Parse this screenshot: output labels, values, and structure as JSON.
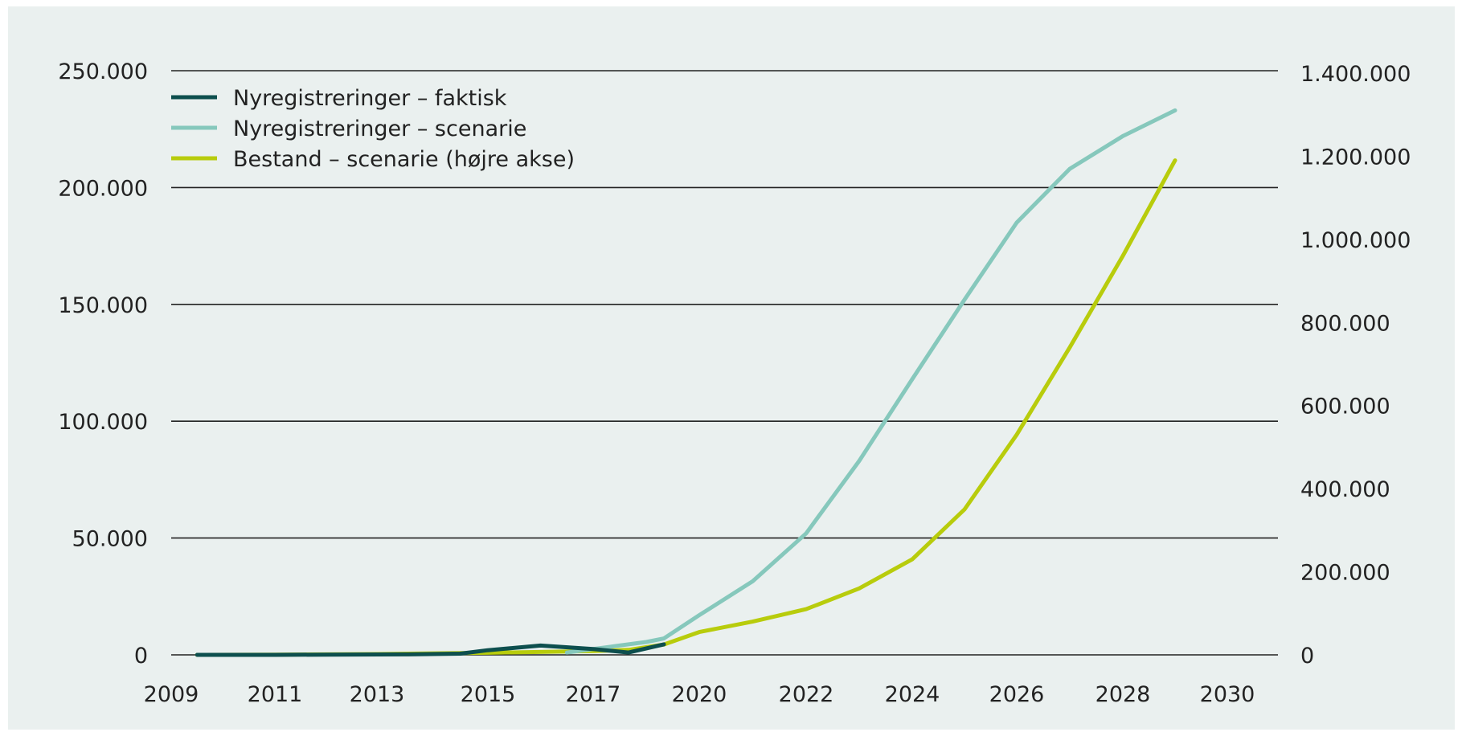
{
  "chart_data": {
    "type": "line",
    "x_ticks": [
      "2009",
      "2011",
      "2013",
      "2015",
      "2017",
      "2020",
      "2022",
      "2024",
      "2026",
      "2028",
      "2030"
    ],
    "y_left": {
      "min": 0,
      "max": 250000,
      "ticks": [
        {
          "value": 0,
          "label": "0"
        },
        {
          "value": 50000,
          "label": "50.000"
        },
        {
          "value": 100000,
          "label": "100.000"
        },
        {
          "value": 150000,
          "label": "150.000"
        },
        {
          "value": 200000,
          "label": "200.000"
        },
        {
          "value": 250000,
          "label": "250.000"
        }
      ]
    },
    "y_right": {
      "min": 0,
      "max": 1400000,
      "ticks": [
        {
          "value": 0,
          "label": "0"
        },
        {
          "value": 200000,
          "label": "200.000"
        },
        {
          "value": 400000,
          "label": "400.000"
        },
        {
          "value": 600000,
          "label": "600.000"
        },
        {
          "value": 800000,
          "label": "800.000"
        },
        {
          "value": 1000000,
          "label": "1.000.000"
        },
        {
          "value": 1200000,
          "label": "1.200.000"
        },
        {
          "value": 1400000,
          "label": "1.400.000"
        }
      ]
    },
    "grid": true,
    "legend_position": "top-left",
    "series": [
      {
        "name": "Nyregistreringer – faktisk",
        "axis": "left",
        "color": "#0d4f4e",
        "points": [
          {
            "x": 2009.5,
            "y": 0
          },
          {
            "x": 2011,
            "y": 0
          },
          {
            "x": 2012,
            "y": 100
          },
          {
            "x": 2013.5,
            "y": 200
          },
          {
            "x": 2014.5,
            "y": 500
          },
          {
            "x": 2015,
            "y": 2000
          },
          {
            "x": 2016,
            "y": 4000
          },
          {
            "x": 2017,
            "y": 2500
          },
          {
            "x": 2018,
            "y": 1000
          },
          {
            "x": 2019,
            "y": 4500
          }
        ]
      },
      {
        "name": "Nyregistreringer – scenarie",
        "axis": "left",
        "color": "#86c8bc",
        "points": [
          {
            "x": 2016.5,
            "y": 1000
          },
          {
            "x": 2017.5,
            "y": 3500
          },
          {
            "x": 2018.5,
            "y": 5500
          },
          {
            "x": 2019,
            "y": 7000
          },
          {
            "x": 2020,
            "y": 17000
          },
          {
            "x": 2021,
            "y": 31500
          },
          {
            "x": 2022,
            "y": 52000
          },
          {
            "x": 2023,
            "y": 83000
          },
          {
            "x": 2024,
            "y": 118000
          },
          {
            "x": 2025,
            "y": 152000
          },
          {
            "x": 2026,
            "y": 185000
          },
          {
            "x": 2027,
            "y": 208000
          },
          {
            "x": 2028,
            "y": 222000
          },
          {
            "x": 2029,
            "y": 233000
          }
        ]
      },
      {
        "name": "Bestand – scenarie (højre akse)",
        "axis": "right",
        "color": "#b8cc0c",
        "points": [
          {
            "x": 2009.5,
            "y": 0
          },
          {
            "x": 2011,
            "y": 500
          },
          {
            "x": 2013,
            "y": 2000
          },
          {
            "x": 2015,
            "y": 5000
          },
          {
            "x": 2017,
            "y": 9000
          },
          {
            "x": 2018,
            "y": 12000
          },
          {
            "x": 2019,
            "y": 25000
          },
          {
            "x": 2020,
            "y": 55000
          },
          {
            "x": 2021,
            "y": 80000
          },
          {
            "x": 2022,
            "y": 110000
          },
          {
            "x": 2023,
            "y": 160000
          },
          {
            "x": 2024,
            "y": 230000
          },
          {
            "x": 2025,
            "y": 350000
          },
          {
            "x": 2026,
            "y": 530000
          },
          {
            "x": 2027,
            "y": 740000
          },
          {
            "x": 2028,
            "y": 960000
          },
          {
            "x": 2029,
            "y": 1190000
          }
        ]
      }
    ]
  }
}
